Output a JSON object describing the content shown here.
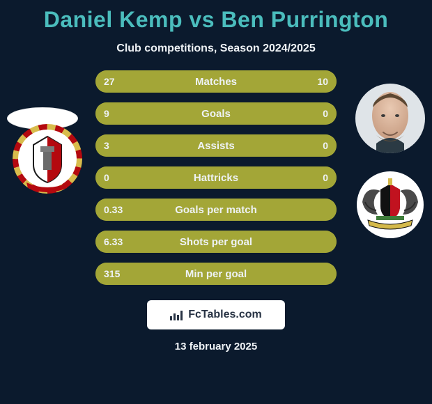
{
  "colors": {
    "cardBg": "#0b1a2d",
    "titleColor": "#4bbdbd",
    "textLight": "#eef2f5",
    "rowBg": "#88862a",
    "rowFill": "#a3a637",
    "watermarkBg": "#ffffff",
    "watermarkText": "#283344",
    "accentDark": "#4a5a20"
  },
  "title": "Daniel Kemp vs Ben Purrington",
  "subtitle": "Club competitions, Season 2024/2025",
  "date": "13 february 2025",
  "watermark": "FcTables.com",
  "players": {
    "left": {
      "name": "Daniel Kemp",
      "hasPhoto": false
    },
    "right": {
      "name": "Ben Purrington",
      "hasPhoto": true
    }
  },
  "chart": {
    "type": "comparison-bars",
    "barWidth": 346,
    "barHeight": 32,
    "barRadius": 16,
    "gap": 14,
    "label_fontsize": 15,
    "value_fontsize": 14,
    "rows": [
      {
        "label": "Matches",
        "left": "27",
        "right": "10",
        "leftPct": 73,
        "rightPct": 27
      },
      {
        "label": "Goals",
        "left": "9",
        "right": "0",
        "leftPct": 100,
        "rightPct": 0
      },
      {
        "label": "Assists",
        "left": "3",
        "right": "0",
        "leftPct": 100,
        "rightPct": 0
      },
      {
        "label": "Hattricks",
        "left": "0",
        "right": "0",
        "leftPct": 50,
        "rightPct": 50
      },
      {
        "label": "Goals per match",
        "left": "0.33",
        "right": "",
        "leftPct": 100,
        "rightPct": 0
      },
      {
        "label": "Shots per goal",
        "left": "6.33",
        "right": "",
        "leftPct": 100,
        "rightPct": 0
      },
      {
        "label": "Min per goal",
        "left": "315",
        "right": "",
        "leftPct": 100,
        "rightPct": 0
      }
    ]
  }
}
